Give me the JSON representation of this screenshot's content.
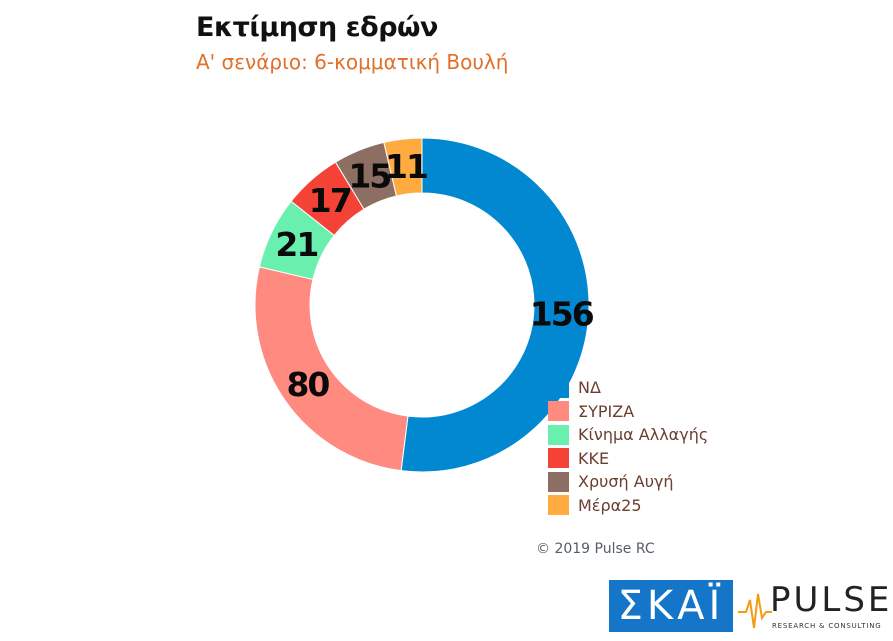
{
  "title": "Εκτίμηση εδρών",
  "subtitle": "Α' σενάριο: 6-κομματική Βουλή",
  "credit": "© 2019 Pulse RC",
  "logos": {
    "skai": "ΣΚΑΪ",
    "pulse": "PULSE",
    "pulse_tagline": "RESEARCH & CONSULTING"
  },
  "chart_data": {
    "type": "pie",
    "title": "Εκτίμηση εδρών",
    "subtitle": "Α' σενάριο: 6-κομματική Βουλή",
    "donut": true,
    "legend_position": "bottom-right",
    "categories": [
      "ΝΔ",
      "ΣΥΡΙΖΑ",
      "Κίνημα Αλλαγής",
      "ΚΚΕ",
      "Χρυσή Αυγή",
      "Μέρα25"
    ],
    "values": [
      156,
      80,
      21,
      17,
      15,
      11
    ],
    "value_labels": [
      "156",
      "80",
      "21",
      "17",
      "15",
      "11"
    ],
    "colors": [
      "#0288D1",
      "#FF8A80",
      "#69F0AE",
      "#F44336",
      "#8D6E63",
      "#FFAB40"
    ]
  }
}
